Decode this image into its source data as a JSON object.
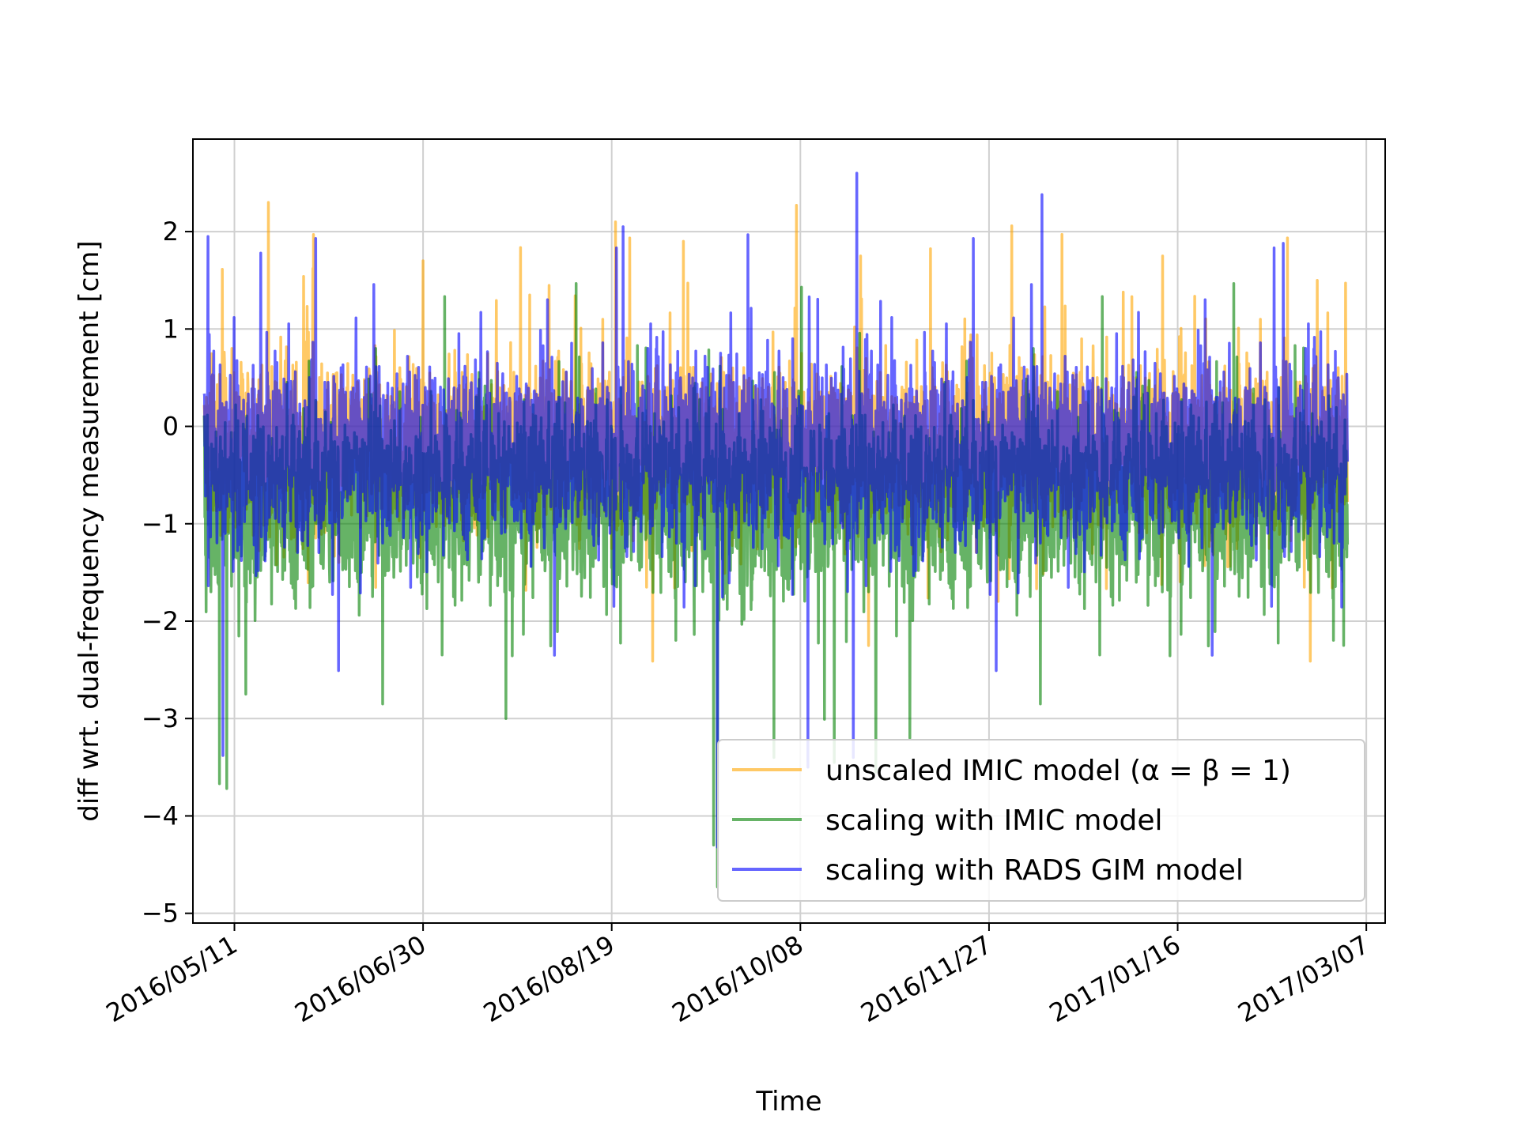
{
  "chart_data": {
    "type": "line",
    "title": "",
    "xlabel": "Time",
    "ylabel": "diff wrt. dual-frequency measurement [cm]",
    "x_start": "2016/05/03",
    "x_end": "2017/03/02",
    "xlim": [
      "2016/04/30",
      "2017/03/12"
    ],
    "ylim": [
      -5.1,
      2.95
    ],
    "xticks": [
      "2016/05/11",
      "2016/06/30",
      "2016/08/19",
      "2016/10/08",
      "2016/11/27",
      "2017/01/16",
      "2017/03/07"
    ],
    "yticks": [
      -5,
      -4,
      -3,
      -2,
      -1,
      0,
      1,
      2
    ],
    "ytick_labels": [
      "−5",
      "−4",
      "−3",
      "−2",
      "−1",
      "0",
      "1",
      "2"
    ],
    "grid": true,
    "legend_position": "lower-right",
    "series": [
      {
        "name": "unscaled IMIC model (α = β = 1)",
        "color": "#ffa500",
        "opacity": 0.6,
        "mean": -0.2,
        "noise": 0.42,
        "spikes": [
          {
            "date": "2016/05/20",
            "value": 2.3
          },
          {
            "date": "2016/06/30",
            "value": 1.7
          },
          {
            "date": "2016/08/20",
            "value": 2.1
          },
          {
            "date": "2016/09/07",
            "value": 1.9
          },
          {
            "date": "2016/10/07",
            "value": 2.27
          },
          {
            "date": "2016/10/24",
            "value": 1.75
          },
          {
            "date": "2016/12/03",
            "value": 2.06
          },
          {
            "date": "2017/01/12",
            "value": 1.75
          },
          {
            "date": "2017/02/22",
            "value": 1.5
          }
        ]
      },
      {
        "name": "scaling with IMIC model",
        "color": "#008000",
        "opacity": 0.6,
        "mean": -0.75,
        "noise": 0.45,
        "spikes": [
          {
            "date": "2016/05/07",
            "value": -3.67
          },
          {
            "date": "2016/05/09",
            "value": -3.72
          },
          {
            "date": "2016/05/14",
            "value": -2.75
          },
          {
            "date": "2016/07/22",
            "value": -3.0
          },
          {
            "date": "2016/09/16",
            "value": -4.73
          },
          {
            "date": "2016/09/15",
            "value": -4.3
          },
          {
            "date": "2016/10/01",
            "value": -3.4
          },
          {
            "date": "2016/10/17",
            "value": -3.45
          },
          {
            "date": "2016/10/28",
            "value": -3.55
          },
          {
            "date": "2016/11/06",
            "value": -3.2
          },
          {
            "date": "2017/03/01",
            "value": -2.25
          }
        ]
      },
      {
        "name": "scaling with RADS GIM model",
        "color": "#0000ff",
        "opacity": 0.6,
        "mean": -0.25,
        "noise": 0.45,
        "spikes": [
          {
            "date": "2016/05/04",
            "value": 1.95
          },
          {
            "date": "2016/05/18",
            "value": 1.78
          },
          {
            "date": "2016/08/22",
            "value": 2.05
          },
          {
            "date": "2016/10/23",
            "value": 2.6
          },
          {
            "date": "2016/12/11",
            "value": 2.38
          },
          {
            "date": "2017/02/13",
            "value": 1.88
          },
          {
            "date": "2016/05/08",
            "value": -3.38
          },
          {
            "date": "2016/09/16",
            "value": -4.32
          },
          {
            "date": "2016/10/10",
            "value": -3.5
          },
          {
            "date": "2016/10/22",
            "value": -3.4
          }
        ]
      }
    ]
  }
}
